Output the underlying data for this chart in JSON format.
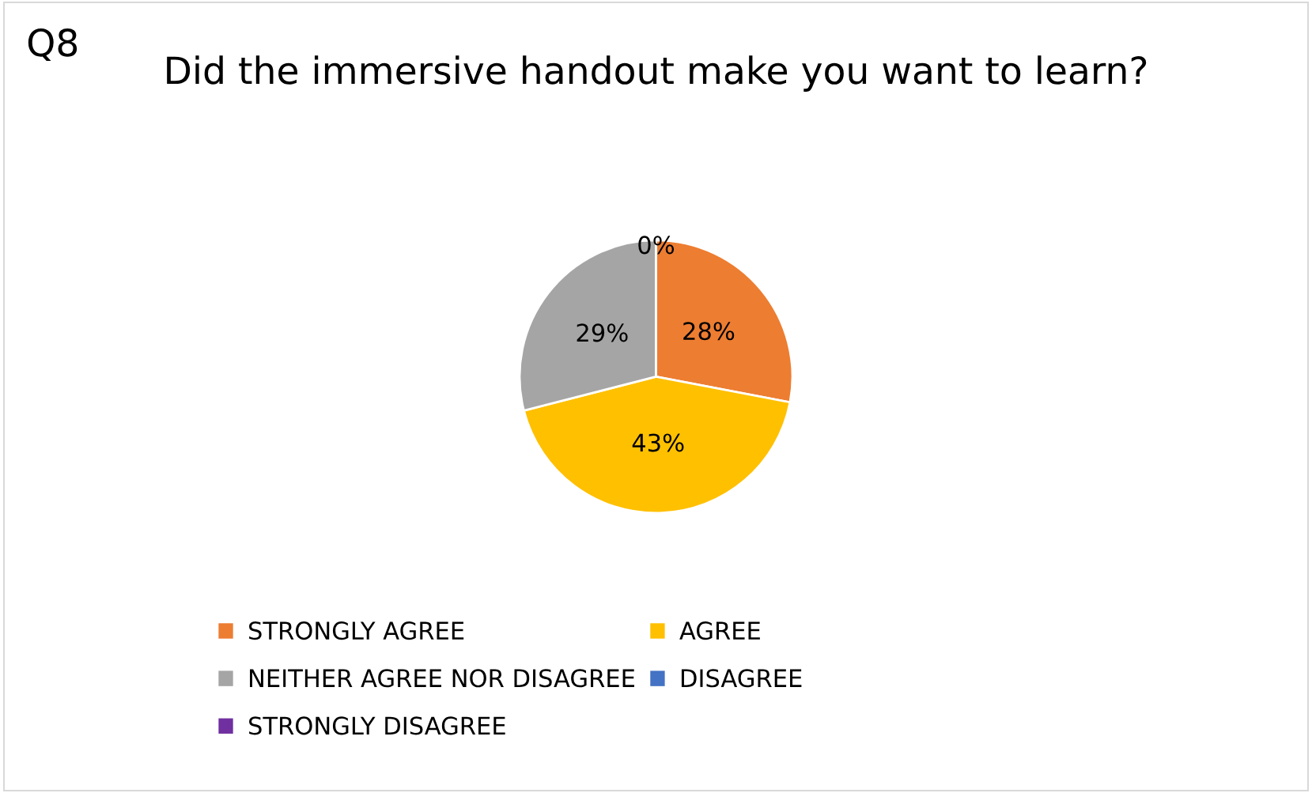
{
  "chart_data": {
    "type": "pie",
    "title": "Did the immersive handout make you want to learn?",
    "annotations": [
      "Q8"
    ],
    "categories": [
      "STRONGLY AGREE",
      "AGREE",
      "NEITHER AGREE NOR DISAGREE",
      "DISAGREE",
      "STRONGLY DISAGREE"
    ],
    "values": [
      28,
      43,
      29,
      0,
      0
    ],
    "colors": [
      "#ed7d31",
      "#ffc000",
      "#a5a5a5",
      "#4472c4",
      "#7030a0"
    ],
    "value_labels": [
      "28%",
      "43%",
      "29%",
      "0%",
      null
    ],
    "legend": "bottom"
  }
}
